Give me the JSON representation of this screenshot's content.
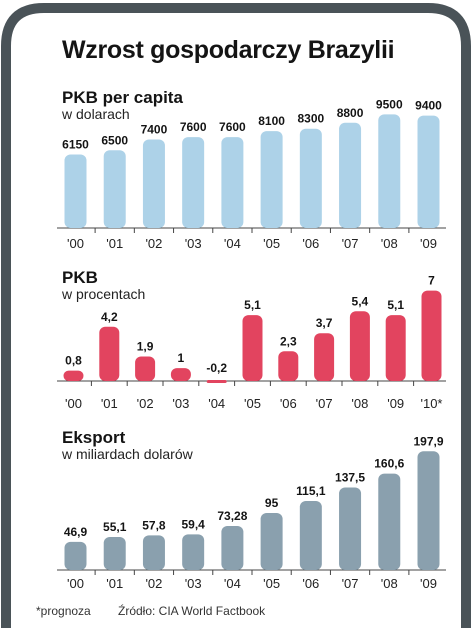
{
  "title": "Wzrost gospodarczy Brazylii",
  "colors": {
    "frame": "#4a5358",
    "gdp_per_capita": "#add2e8",
    "gdp_growth": "#e2445f",
    "exports": "#8aa0ae",
    "axis": "#444444"
  },
  "chart_data": [
    {
      "type": "bar",
      "title": "PKB per capita",
      "subtitle": "w dolarach",
      "categories": [
        "'00",
        "'01",
        "'02",
        "'03",
        "'04",
        "'05",
        "'06",
        "'07",
        "'08",
        "'09"
      ],
      "values": [
        6150,
        6500,
        7400,
        7600,
        7600,
        8100,
        8300,
        8800,
        9500,
        9400
      ],
      "value_labels": [
        "6150",
        "6500",
        "7400",
        "7600",
        "7600",
        "8100",
        "8300",
        "8800",
        "9500",
        "9400"
      ],
      "ylim": [
        0,
        9700
      ],
      "grid": false
    },
    {
      "type": "bar",
      "title": "PKB",
      "subtitle": "w procentach",
      "categories": [
        "'00",
        "'01",
        "'02",
        "'03",
        "'04",
        "'05",
        "'06",
        "'07",
        "'08",
        "'09",
        "'10*"
      ],
      "values": [
        0.8,
        4.2,
        1.9,
        1,
        -0.2,
        5.1,
        2.3,
        3.7,
        5.4,
        5.1,
        7
      ],
      "value_labels": [
        "0,8",
        "4,2",
        "1,9",
        "1",
        "-0,2",
        "5,1",
        "2,3",
        "3,7",
        "5,4",
        "5,1",
        "7"
      ],
      "ylim": [
        -0.3,
        7.2
      ],
      "grid": false
    },
    {
      "type": "bar",
      "title": "Eksport",
      "subtitle": "w miliardach dolarów",
      "categories": [
        "'00",
        "'01",
        "'02",
        "'03",
        "'04",
        "'05",
        "'06",
        "'07",
        "'08",
        "'09"
      ],
      "values": [
        46.9,
        55.1,
        57.8,
        59.4,
        73.28,
        95,
        115.1,
        137.5,
        160.6,
        197.9
      ],
      "value_labels": [
        "46,9",
        "55,1",
        "57,8",
        "59,4",
        "73,28",
        "95",
        "115,1",
        "137,5",
        "160,6",
        "197,9"
      ],
      "ylim": [
        0,
        200
      ],
      "grid": false
    }
  ],
  "footer": {
    "note": "*prognoza",
    "source": "Źródło: CIA World Factbook"
  }
}
